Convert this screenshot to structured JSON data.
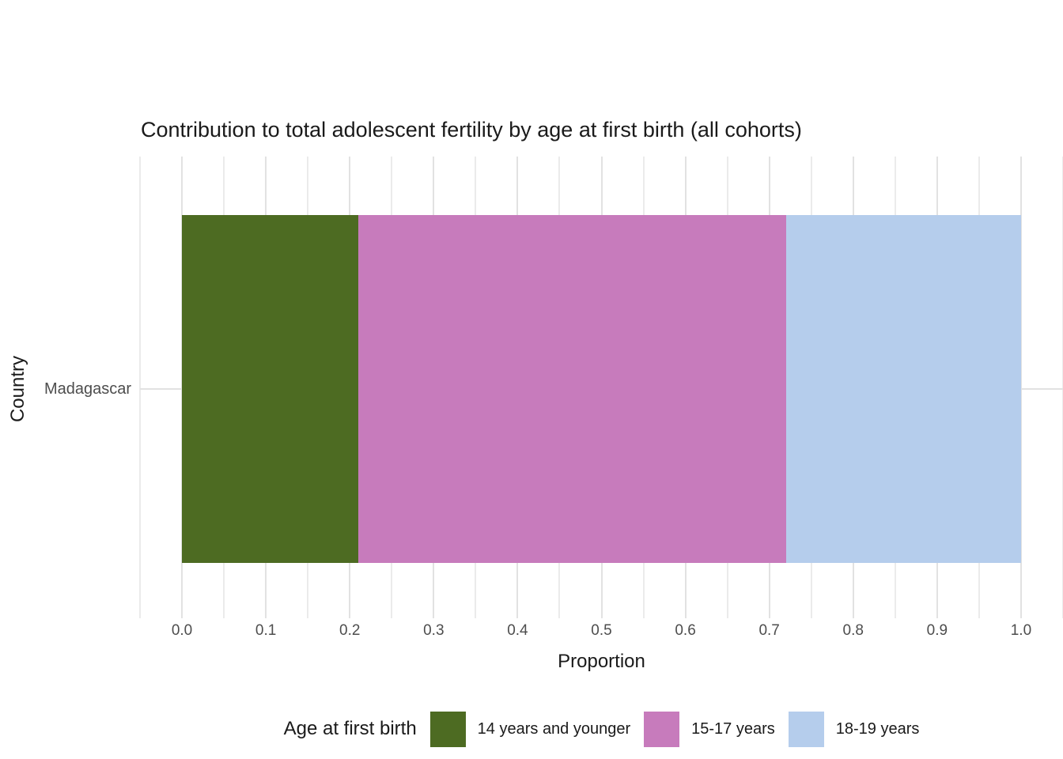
{
  "chart_data": {
    "type": "bar",
    "orientation": "horizontal",
    "stacked": true,
    "title": "Contribution to total adolescent fertility by age at first birth (all cohorts)",
    "xlabel": "Proportion",
    "ylabel": "Country",
    "categories": [
      "Madagascar"
    ],
    "series": [
      {
        "name": "14 years and younger",
        "values": [
          0.21
        ],
        "color": "#4D6B22"
      },
      {
        "name": "15-17 years",
        "values": [
          0.51
        ],
        "color": "#C77BBC"
      },
      {
        "name": "18-19 years",
        "values": [
          0.28
        ],
        "color": "#B5CDEC"
      }
    ],
    "xlim": [
      0,
      1
    ],
    "x_ticks": [
      0,
      0.1,
      0.2,
      0.3,
      0.4,
      0.5,
      0.6,
      0.7,
      0.8,
      0.9,
      1
    ],
    "x_tick_labels": [
      "0.0",
      "0.1",
      "0.2",
      "0.3",
      "0.4",
      "0.5",
      "0.6",
      "0.7",
      "0.8",
      "0.9",
      "1.0"
    ],
    "axis_expansion": 0.05,
    "minor_grid_step": 0.05,
    "grid": "on",
    "legend_title": "Age at first birth",
    "legend_position": "bottom",
    "colors": {
      "background": "#FFFFFF",
      "grid_major": "#E2E2E2",
      "grid_minor": "#EBEBEB",
      "tick_label": "#4D4D4D",
      "text": "#1A1A1A"
    }
  }
}
